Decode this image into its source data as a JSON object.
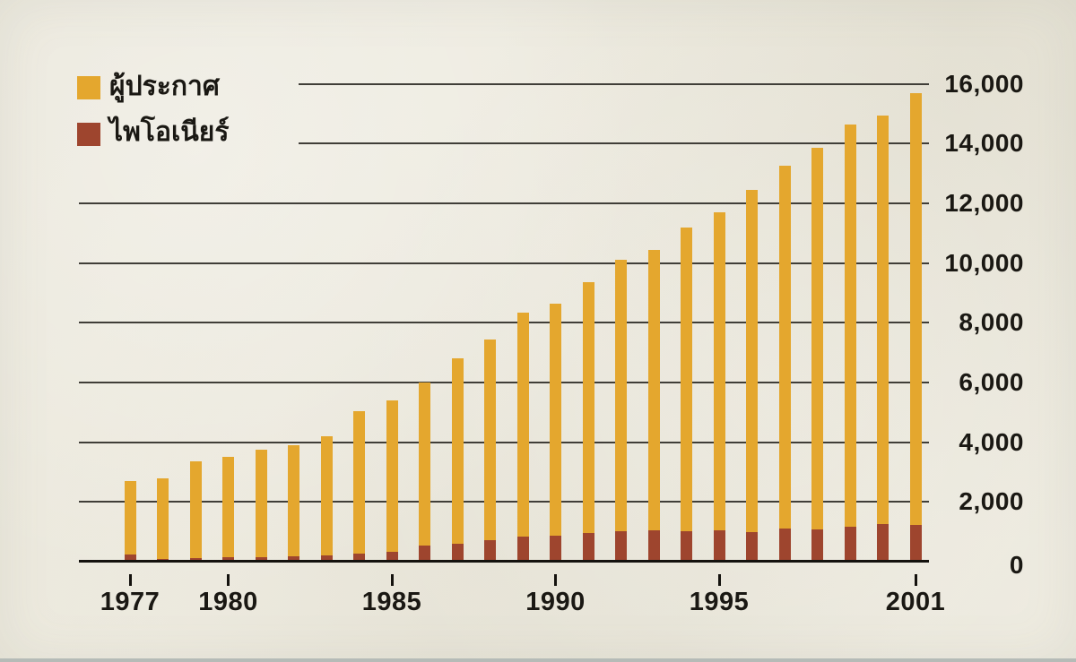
{
  "legend": {
    "publishers_label": "ผู้ประกาศ",
    "pioneers_label": "ไพโอเนียร์"
  },
  "colors": {
    "publishers_bar": "#e4a72e",
    "pioneers_bar": "#9e452e",
    "background": "#ece9dd",
    "gridline": "#403e38",
    "axis_line": "#14120e",
    "text": "#1a1813",
    "bottom_strip": "#b5bbb7"
  },
  "y_axis": {
    "tick_labels": [
      "0",
      "2,000",
      "4,000",
      "6,000",
      "8,000",
      "10,000",
      "12,000",
      "14,000",
      "16,000"
    ],
    "tick_values": [
      0,
      2000,
      4000,
      6000,
      8000,
      10000,
      12000,
      14000,
      16000
    ]
  },
  "x_axis": {
    "labeled_years": [
      "1977",
      "1980",
      "1985",
      "1990",
      "1995",
      "2001"
    ]
  },
  "chart_data": {
    "type": "bar",
    "overlayed": true,
    "title": "",
    "xlabel": "",
    "ylabel": "",
    "ylim": [
      0,
      16000
    ],
    "y_tick_step": 2000,
    "grid": true,
    "legend_position": "top-left",
    "categories": [
      1977,
      1978,
      1979,
      1980,
      1981,
      1982,
      1983,
      1984,
      1985,
      1986,
      1987,
      1988,
      1989,
      1990,
      1991,
      1992,
      1993,
      1994,
      1995,
      1996,
      1997,
      1998,
      1999,
      2000,
      2001
    ],
    "series": [
      {
        "name": "ผู้ประกาศ",
        "color": "#e4a72e",
        "values": [
          2700,
          2800,
          3350,
          3500,
          3750,
          3900,
          4200,
          5050,
          5400,
          6000,
          6800,
          7450,
          8350,
          8650,
          9350,
          10100,
          10450,
          11200,
          11700,
          12450,
          13250,
          13850,
          14650,
          14950,
          15700
        ]
      },
      {
        "name": "ไพโอเนียร์",
        "color": "#9e452e",
        "values": [
          250,
          80,
          110,
          140,
          140,
          170,
          200,
          260,
          330,
          530,
          600,
          720,
          830,
          870,
          950,
          1030,
          1050,
          1030,
          1040,
          980,
          1100,
          1080,
          1170,
          1250,
          1220
        ]
      }
    ]
  }
}
